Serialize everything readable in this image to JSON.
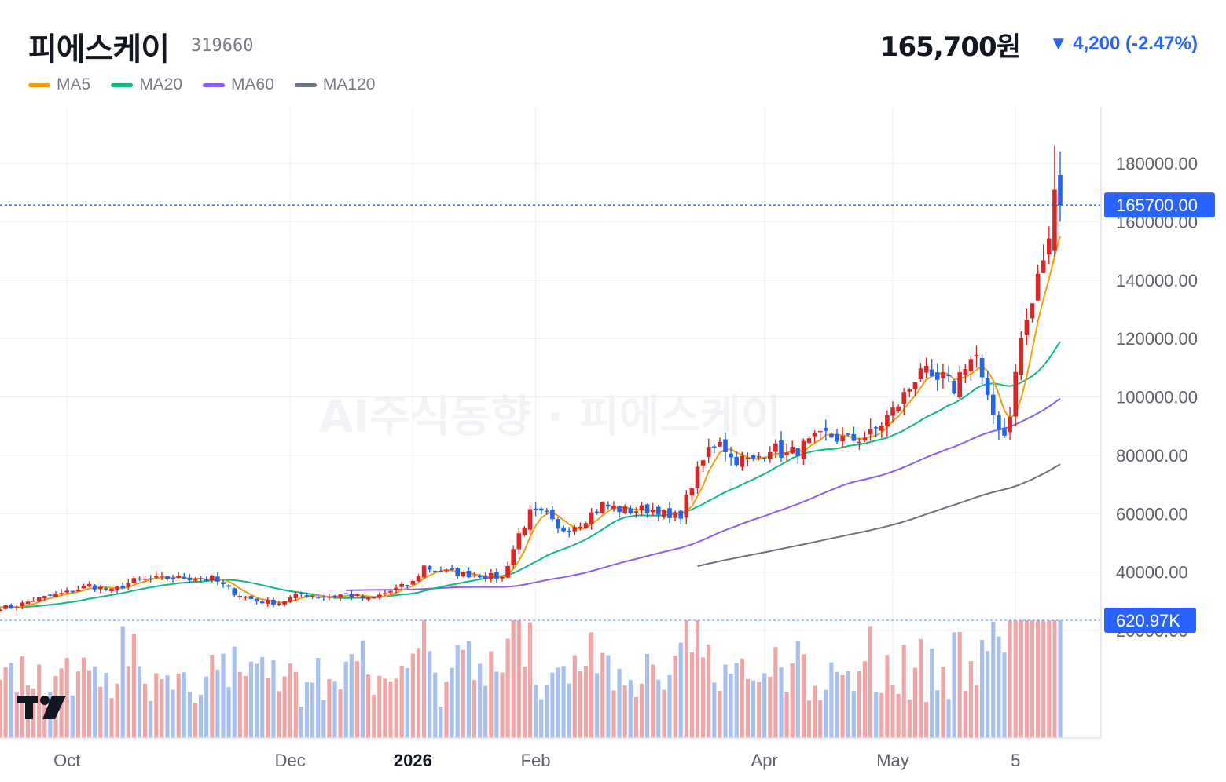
{
  "header": {
    "name": "피에스케이",
    "code": "319660",
    "price": "165,700원",
    "change": "▼ 4,200 (-2.47%)",
    "change_color": "#2962ff"
  },
  "legend": [
    {
      "name": "MA5",
      "color": "#f59e0b"
    },
    {
      "name": "MA20",
      "color": "#10b981"
    },
    {
      "name": "MA60",
      "color": "#8b5cf6"
    },
    {
      "name": "MA120",
      "color": "#6b7280"
    }
  ],
  "watermark": "AI주식동향 · 피에스케이",
  "logo": "TV",
  "colors": {
    "up": "#dc2626",
    "down": "#2563eb"
  },
  "chart_data": {
    "type": "candlestick",
    "price_ticks": [
      "180000.00",
      "160000.00",
      "140000.00",
      "120000.00",
      "100000.00",
      "80000.00",
      "60000.00",
      "40000.00",
      "20000.00"
    ],
    "price_tick_values": [
      180000,
      160000,
      140000,
      120000,
      100000,
      80000,
      60000,
      40000,
      20000
    ],
    "last_price_label": "165700.00",
    "last_price": 165700,
    "last_volume_label": "620.97K",
    "x_labels": [
      {
        "text": "Oct",
        "index": 12,
        "bold": false
      },
      {
        "text": "Dec",
        "index": 52,
        "bold": false
      },
      {
        "text": "2026",
        "index": 74,
        "bold": true
      },
      {
        "text": "Feb",
        "index": 96,
        "bold": false
      },
      {
        "text": "Apr",
        "index": 137,
        "bold": false
      },
      {
        "text": "May",
        "index": 160,
        "bold": false
      },
      {
        "text": "5",
        "index": 182,
        "bold": false
      }
    ],
    "ma60_start_index": 62,
    "ma120_start_index": 125,
    "anchors": [
      [
        0,
        28000
      ],
      [
        2,
        27800
      ],
      [
        6,
        30500
      ],
      [
        12,
        33000
      ],
      [
        16,
        35500
      ],
      [
        20,
        33500
      ],
      [
        24,
        37000
      ],
      [
        28,
        37800
      ],
      [
        33,
        38000
      ],
      [
        38,
        37800
      ],
      [
        42,
        33000
      ],
      [
        46,
        30000
      ],
      [
        50,
        29500
      ],
      [
        54,
        32500
      ],
      [
        58,
        31500
      ],
      [
        62,
        32500
      ],
      [
        66,
        30500
      ],
      [
        70,
        33500
      ],
      [
        74,
        36500
      ],
      [
        76,
        42000
      ],
      [
        78,
        40500
      ],
      [
        82,
        39500
      ],
      [
        86,
        39000
      ],
      [
        90,
        38000
      ],
      [
        93,
        53000
      ],
      [
        95,
        60000
      ],
      [
        98,
        59500
      ],
      [
        100,
        54000
      ],
      [
        104,
        57000
      ],
      [
        108,
        63000
      ],
      [
        112,
        61000
      ],
      [
        116,
        61500
      ],
      [
        118,
        61500
      ],
      [
        120,
        58000
      ],
      [
        122,
        60000
      ],
      [
        124,
        70000
      ],
      [
        127,
        82000
      ],
      [
        129,
        86000
      ],
      [
        131,
        79000
      ],
      [
        135,
        78000
      ],
      [
        138,
        83000
      ],
      [
        141,
        80000
      ],
      [
        145,
        84000
      ],
      [
        148,
        87000
      ],
      [
        152,
        85000
      ],
      [
        156,
        87000
      ],
      [
        160,
        95000
      ],
      [
        163,
        103000
      ],
      [
        165,
        111000
      ],
      [
        167,
        104000
      ],
      [
        169,
        106000
      ],
      [
        171,
        103000
      ],
      [
        173,
        112000
      ],
      [
        175,
        114000
      ],
      [
        176,
        105000
      ],
      [
        177,
        98000
      ],
      [
        178,
        94000
      ],
      [
        180,
        87000
      ],
      [
        181,
        95000
      ],
      [
        183,
        120000
      ],
      [
        185,
        132000
      ],
      [
        187,
        148000
      ],
      [
        188,
        152000
      ],
      [
        189,
        171000
      ],
      [
        190,
        165700
      ]
    ]
  }
}
